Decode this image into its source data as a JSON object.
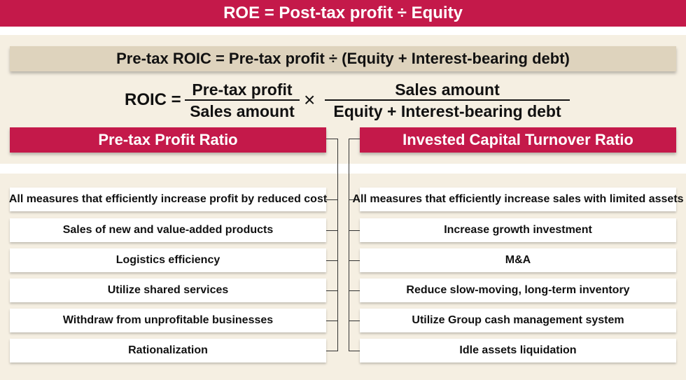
{
  "roe_banner": "ROE = Post-tax profit ÷ Equity",
  "roic_definition": "Pre-tax ROIC = Pre-tax profit ÷ (Equity + Interest-bearing debt)",
  "formula": {
    "label": "ROIC =",
    "fraction1": {
      "numerator": "Pre-tax profit",
      "denominator": "Sales amount"
    },
    "operator": "×",
    "fraction2": {
      "numerator": "Sales amount",
      "denominator": "Equity + Interest-bearing debt"
    }
  },
  "left_column": {
    "header": "Pre-tax Profit Ratio",
    "items": [
      "All measures that efficiently increase profit by reduced cost",
      "Sales of new and value-added products",
      "Logistics efficiency",
      "Utilize shared services",
      "Withdraw from unprofitable businesses",
      "Rationalization"
    ]
  },
  "right_column": {
    "header": "Invested Capital Turnover Ratio",
    "items": [
      "All measures that efficiently increase sales with limited assets",
      "Increase growth investment",
      "M&A",
      "Reduce slow-moving, long-term inventory",
      "Utilize Group cash management system",
      "Idle assets liquidation"
    ]
  },
  "colors": {
    "accent_red": "#c4194a",
    "beige_band": "#ded3bd",
    "background": "#f5efe2"
  }
}
